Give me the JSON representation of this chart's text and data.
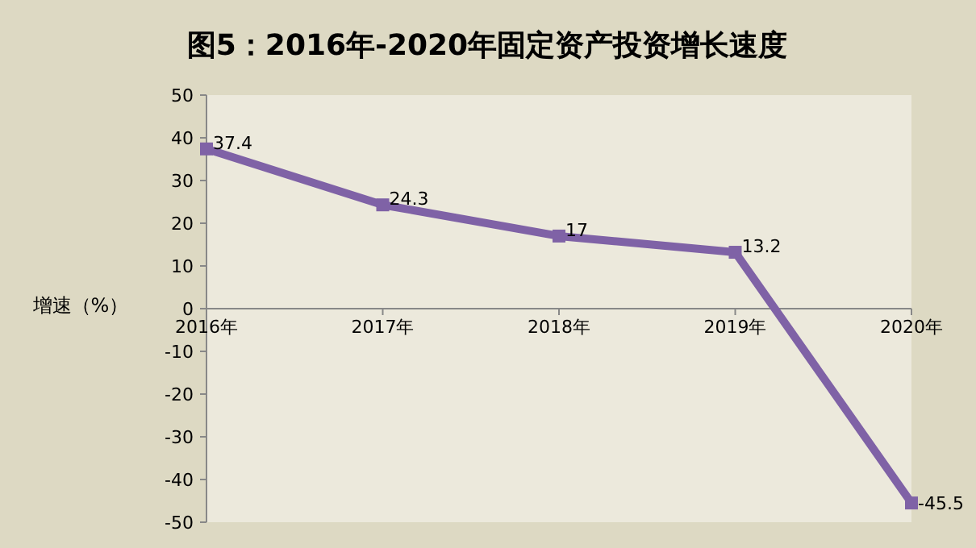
{
  "chart_data": {
    "type": "line",
    "title": "图5：2016年-2020年固定资产投资增长速度",
    "ylabel": "增速（%）",
    "categories": [
      "2016年",
      "2017年",
      "2018年",
      "2019年",
      "2020年"
    ],
    "values": [
      37.4,
      24.3,
      17,
      13.2,
      -45.5
    ],
    "color": "#7f62a6",
    "marker": "square",
    "data_labels": true,
    "ylim": [
      -50,
      50
    ],
    "yticks": [
      -50,
      -40,
      -30,
      -20,
      -10,
      0,
      10,
      20,
      30,
      40,
      50
    ]
  }
}
